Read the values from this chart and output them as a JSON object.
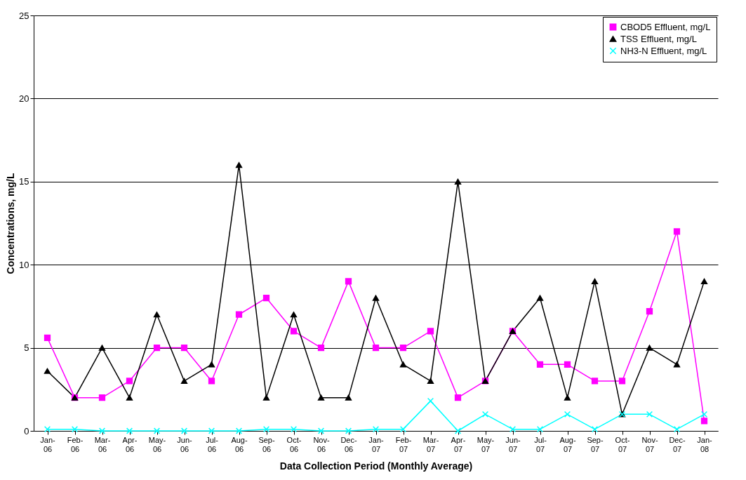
{
  "chart_data": {
    "type": "line",
    "xlabel": "Data Collection Period (Monthly Average)",
    "ylabel": "Concentrations, mg/L",
    "categories": [
      "Jan-06",
      "Feb-06",
      "Mar-06",
      "Apr-06",
      "May-06",
      "Jun-06",
      "Jul-06",
      "Aug-06",
      "Sep-06",
      "Oct-06",
      "Nov-06",
      "Dec-06",
      "Jan-07",
      "Feb-07",
      "Mar-07",
      "Apr-07",
      "May-07",
      "Jun-07",
      "Jul-07",
      "Aug-07",
      "Sep-07",
      "Oct-07",
      "Nov-07",
      "Dec-07",
      "Jan-08"
    ],
    "series": [
      {
        "name": "CBOD5 Effluent, mg/L",
        "color": "#ff00ff",
        "marker": "square",
        "values": [
          5.6,
          2,
          2,
          3,
          5,
          5,
          3,
          7,
          8,
          6,
          5,
          9,
          5,
          5,
          6,
          2,
          3,
          6,
          4,
          4,
          3,
          3,
          7.2,
          12,
          0.6
        ]
      },
      {
        "name": "TSS Effluent, mg/L",
        "color": "#000000",
        "marker": "triangle",
        "values": [
          3.6,
          2,
          5,
          2,
          7,
          3,
          4,
          16,
          2,
          7,
          2,
          2,
          8,
          4,
          3,
          15,
          3,
          6,
          8,
          2,
          9,
          1,
          5,
          4,
          9
        ]
      },
      {
        "name": "NH3-N Effluent, mg/L",
        "color": "#00ffff",
        "marker": "cross",
        "values": [
          0.1,
          0.1,
          0,
          0,
          0,
          0,
          0,
          0,
          0.1,
          0.1,
          0,
          0,
          0.1,
          0.1,
          1.8,
          0,
          1,
          0.1,
          0.1,
          1,
          0.1,
          1,
          1,
          0.1,
          1
        ]
      }
    ],
    "ylim": [
      0,
      25
    ],
    "yticks": [
      0,
      5,
      10,
      15,
      20,
      25
    ],
    "grid": "y",
    "legend": "top right",
    "line_style": "solid"
  }
}
